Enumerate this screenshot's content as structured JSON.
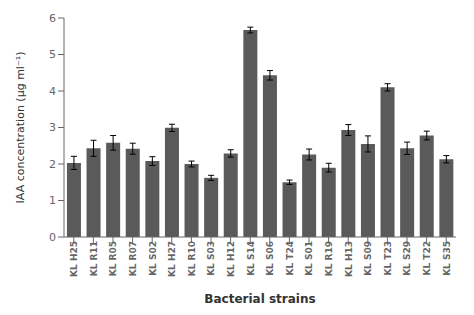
{
  "chart_data": {
    "type": "bar",
    "categories": [
      "KL H25",
      "KL R11",
      "KL R05",
      "KL R07",
      "KL S02",
      "KL H27",
      "KL R10",
      "KL S03",
      "KL H12",
      "KL S14",
      "KL S06",
      "KL T24",
      "KL S01",
      "KL R19",
      "KL H13",
      "KL S09",
      "KL T23",
      "KL S29",
      "KL T22",
      "KL S35"
    ],
    "values": [
      2.03,
      2.43,
      2.58,
      2.42,
      2.08,
      2.99,
      2.0,
      1.62,
      2.29,
      5.67,
      4.43,
      1.5,
      2.26,
      1.9,
      2.93,
      2.55,
      4.1,
      2.43,
      2.78,
      2.13
    ],
    "errors": [
      0.18,
      0.22,
      0.2,
      0.15,
      0.12,
      0.1,
      0.08,
      0.07,
      0.1,
      0.08,
      0.13,
      0.06,
      0.15,
      0.12,
      0.15,
      0.22,
      0.1,
      0.17,
      0.12,
      0.1
    ],
    "color": "#5a5a5a",
    "xlabel": "Bacterial strains",
    "ylabel": "IAA concentration (μg ml⁻¹)",
    "ylim": [
      0,
      6
    ],
    "yticks": [
      0,
      1,
      2,
      3,
      4,
      5,
      6
    ],
    "grid": false
  }
}
